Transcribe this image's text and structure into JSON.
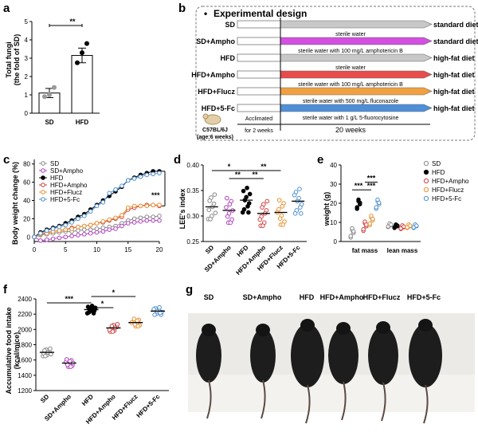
{
  "panels": {
    "a": "a",
    "b": "b",
    "c": "c",
    "d": "d",
    "e": "e",
    "f": "f",
    "g": "g"
  },
  "panel_a": {
    "ylabel_line1": "Total fungi",
    "ylabel_line2": "(the fold of SD)",
    "sig": "**",
    "yticks": [
      "0",
      "1",
      "2",
      "3",
      "4",
      "5"
    ]
  },
  "panel_b": {
    "title": "Experimental design",
    "bullet": "•",
    "mouse_label1": "C57BL/6J",
    "mouse_label2": "(age:6 weeks)",
    "acclimated1": "Acclimated",
    "acclimated2": "for 2 weeks",
    "weeks": "20  weeks",
    "rows": [
      {
        "group": "SD",
        "treatment": "sterile water",
        "diet": "standard diet",
        "color": "#c8c8c8"
      },
      {
        "group": "SD+Ampho",
        "treatment": "sterile water with 100 mg/L amphotericin B",
        "diet": "standard diet",
        "color": "#d34fe0"
      },
      {
        "group": "HFD",
        "treatment": "sterile water",
        "diet": "high-fat diet",
        "color": "#c8c8c8"
      },
      {
        "group": "HFD+Ampho",
        "treatment": "sterile water with 100 mg/L amphotericin B",
        "diet": "high-fat diet",
        "color": "#e84b4b"
      },
      {
        "group": "HFD+Flucz",
        "treatment": "sterile water with 500 mg/L fluconazole",
        "diet": "high-fat diet",
        "color": "#f0a040"
      },
      {
        "group": "HFD+5-Fc",
        "treatment": "sterile water with 1 g/L 5-fluorocytosine",
        "diet": "high-fat diet",
        "color": "#4f8fd8"
      }
    ]
  },
  "panel_c": {
    "ylabel": "Body weight change (%)",
    "sig": "***",
    "yticks": [
      "0",
      "20",
      "40",
      "60",
      "80"
    ],
    "xticks": [
      "0",
      "5",
      "10",
      "15",
      "20"
    ]
  },
  "panel_d": {
    "ylabel": "LEE's index",
    "yticks": [
      "0.25",
      "0.30",
      "0.35",
      "0.40"
    ],
    "sig": [
      "*",
      "**",
      "**",
      "**"
    ]
  },
  "panel_e": {
    "ylabel": "weight (g)",
    "yticks": [
      "0",
      "10",
      "20",
      "30",
      "40"
    ],
    "groups": [
      "fat mass",
      "lean mass"
    ],
    "sig": [
      "***",
      "***",
      "***"
    ]
  },
  "panel_f": {
    "ylabel_line1": "Accumulative food intake",
    "ylabel_line2": "(kcal/mice)",
    "yticks": [
      "1200",
      "1400",
      "1600",
      "1800",
      "2000",
      "2200",
      "2400"
    ],
    "sig": [
      "***",
      "*",
      "*"
    ]
  },
  "panel_g": {
    "labels": [
      "SD",
      "SD+Ampho",
      "HFD",
      "HFD+Ampho",
      "HFD+Flucz",
      "HFD+5-Fc"
    ]
  },
  "legend": [
    {
      "name": "SD",
      "color": "#888888"
    },
    {
      "name": "SD+Ampho",
      "color": "#b040c0"
    },
    {
      "name": "HFD",
      "color": "#000000"
    },
    {
      "name": "HFD+Ampho",
      "color": "#d04040"
    },
    {
      "name": "HFD+Flucz",
      "color": "#e89030"
    },
    {
      "name": "HFD+5-Fc",
      "color": "#5090d0"
    }
  ],
  "chart_data": [
    {
      "panel": "a",
      "type": "bar",
      "categories": [
        "SD",
        "HFD"
      ],
      "values": [
        1.1,
        3.15
      ],
      "errors": [
        0.25,
        0.4
      ],
      "points": [
        [
          0.9,
          1.0,
          1.4
        ],
        [
          2.75,
          3.3,
          3.8
        ]
      ],
      "ylabel": "Total fungi (the fold of SD)",
      "ylim": [
        0,
        5
      ]
    },
    {
      "panel": "c",
      "type": "line",
      "x": [
        0,
        1,
        2,
        3,
        4,
        5,
        6,
        7,
        8,
        9,
        10,
        11,
        12,
        13,
        14,
        15,
        16,
        17,
        18,
        19,
        20
      ],
      "series": [
        {
          "name": "SD",
          "values": [
            0,
            2,
            3,
            4,
            5,
            6,
            6,
            7,
            8,
            8,
            9,
            10,
            11,
            12,
            15,
            18,
            20,
            21,
            22,
            22,
            23
          ]
        },
        {
          "name": "SD+Ampho",
          "values": [
            0,
            -4,
            -3,
            -2,
            -1,
            0,
            1,
            2,
            3,
            4,
            5,
            6,
            8,
            9,
            12,
            15,
            16,
            17,
            18,
            18,
            18
          ]
        },
        {
          "name": "HFD",
          "values": [
            0,
            5,
            8,
            10,
            12,
            15,
            18,
            22,
            25,
            30,
            35,
            40,
            45,
            50,
            55,
            62,
            65,
            68,
            70,
            72,
            72
          ]
        },
        {
          "name": "HFD+Ampho",
          "values": [
            0,
            3,
            5,
            6,
            7,
            8,
            10,
            11,
            12,
            13,
            15,
            16,
            18,
            20,
            22,
            30,
            32,
            34,
            35,
            35,
            34
          ]
        },
        {
          "name": "HFD+Flucz",
          "values": [
            0,
            3,
            4,
            6,
            7,
            8,
            9,
            11,
            12,
            13,
            15,
            17,
            19,
            21,
            24,
            32,
            34,
            34,
            34,
            35,
            35
          ]
        },
        {
          "name": "HFD+5-Fc",
          "values": [
            0,
            4,
            7,
            9,
            11,
            13,
            16,
            20,
            23,
            28,
            34,
            38,
            48,
            52,
            56,
            62,
            64,
            66,
            68,
            69,
            70
          ]
        }
      ],
      "ylabel": "Body weight change (%)",
      "ylim": [
        -5,
        85
      ],
      "xlim": [
        0,
        20
      ]
    },
    {
      "panel": "d",
      "type": "scatter",
      "categories": [
        "SD",
        "SD+Ampho",
        "HFD",
        "HFD+Ampho",
        "HFD+Flucz",
        "HFD+5-Fc"
      ],
      "means": [
        0.318,
        0.311,
        0.331,
        0.305,
        0.307,
        0.329
      ],
      "ylabel": "LEE's index",
      "ylim": [
        0.25,
        0.4
      ]
    },
    {
      "panel": "e",
      "type": "scatter",
      "categories": [
        "fat mass",
        "lean mass"
      ],
      "series": [
        {
          "name": "SD",
          "values": [
            4.5,
            8.5
          ]
        },
        {
          "name": "HFD",
          "values": [
            19.5,
            8.0
          ]
        },
        {
          "name": "HFD+Ampho",
          "values": [
            8.0,
            7.5
          ]
        },
        {
          "name": "HFD+Flucz",
          "values": [
            11.0,
            8.0
          ]
        },
        {
          "name": "HFD+5-Fc",
          "values": [
            19.5,
            8.0
          ]
        }
      ],
      "ylabel": "weight (g)",
      "ylim": [
        0,
        40
      ]
    },
    {
      "panel": "f",
      "type": "scatter",
      "categories": [
        "SD",
        "SD+Ampho",
        "HFD",
        "HFD+Ampho",
        "HFD+Flucz",
        "HFD+5-Fc"
      ],
      "means": [
        1700,
        1560,
        2260,
        2020,
        2090,
        2240
      ],
      "ylabel": "Accumulative food intake (kcal/mice)",
      "ylim": [
        1200,
        2400
      ]
    }
  ]
}
